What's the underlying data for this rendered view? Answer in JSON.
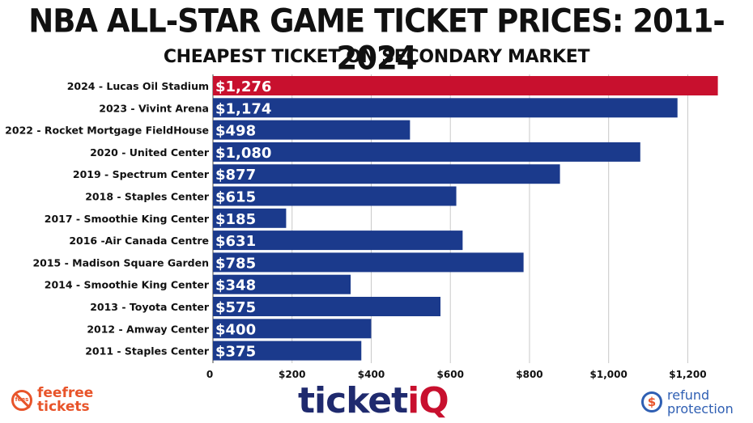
{
  "chart_data": {
    "type": "bar",
    "orientation": "horizontal",
    "title": "NBA ALL-STAR GAME TICKET PRICES: 2011-2024",
    "subtitle": "CHEAPEST TICKET ON SECONDARY MARKET",
    "xlabel": "",
    "ylabel": "",
    "xlim": [
      0,
      1300
    ],
    "grid": true,
    "categories": [
      "2024 - Lucas Oil Stadium",
      "2023 - Vivint Arena",
      "2022 - Rocket Mortgage FieldHouse",
      "2020 - United Center",
      "2019 - Spectrum Center",
      "2018 - Staples Center",
      "2017 - Smoothie King Center",
      "2016 -Air Canada Centre",
      "2015 - Madison Square Garden",
      "2014 - Smoothie King Center",
      "2013 - Toyota Center",
      "2012 - Amway Center",
      "2011 - Staples Center"
    ],
    "values": [
      1276,
      1174,
      498,
      1080,
      877,
      615,
      185,
      631,
      785,
      348,
      575,
      400,
      375
    ],
    "value_labels": [
      "$1,276",
      "$1,174",
      "$498",
      "$1,080",
      "$877",
      "$615",
      "$185",
      "$631",
      "$785",
      "$348",
      "$575",
      "$400",
      "$375"
    ],
    "ticks": [
      0,
      200,
      400,
      600,
      800,
      1000,
      1200
    ],
    "tick_labels": [
      "0",
      "$200",
      "$400",
      "$600",
      "$800",
      "$1,000",
      "$1,200"
    ],
    "highlight_index": 0,
    "colors": {
      "bar": "#1b3a8c",
      "highlight": "#c8102e",
      "grid": "#c8c8c8"
    }
  },
  "branding": {
    "fee_icon_text": "fees",
    "fee_line1": "feefree",
    "fee_line2": "tickets",
    "logo_main": "ticket",
    "logo_accent": "iQ",
    "refund_icon": "$",
    "refund_line1": "refund",
    "refund_line2": "protection"
  }
}
